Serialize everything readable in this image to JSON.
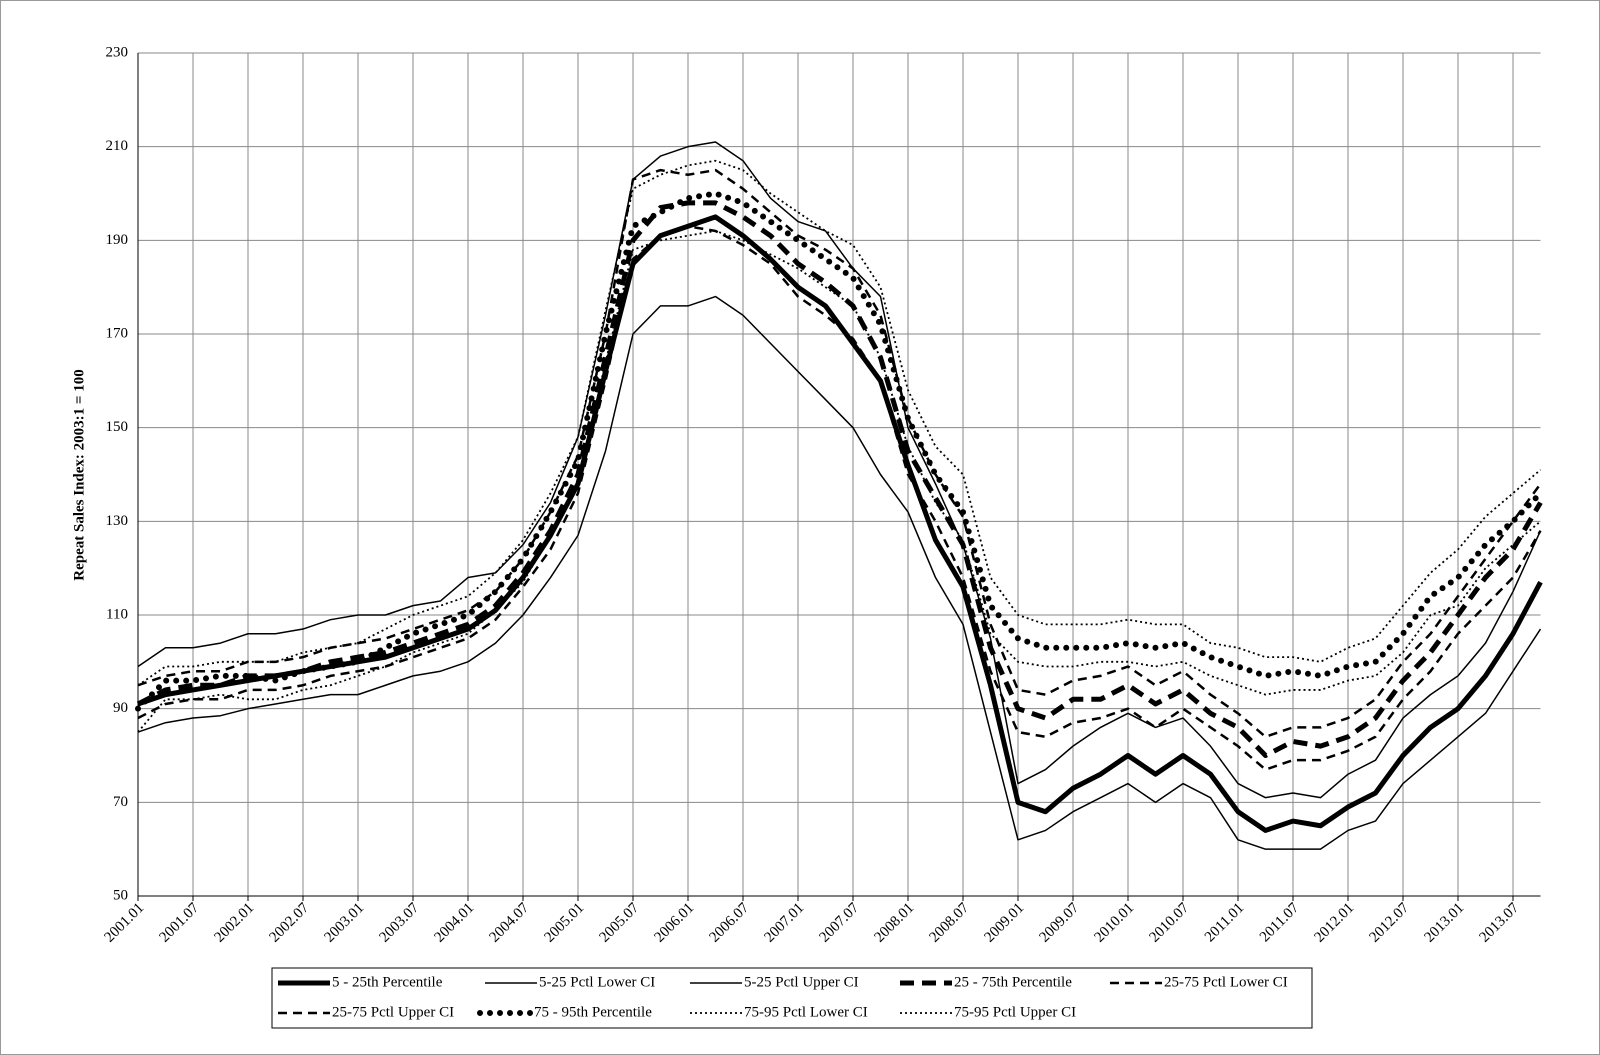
{
  "chart_data": {
    "type": "line",
    "y_label": "Repeat Sales Index:  2003:1 = 100",
    "categories": [
      "2001.01",
      null,
      "2001.07",
      null,
      "2002.01",
      null,
      "2002.07",
      null,
      "2003.01",
      null,
      "2003.07",
      null,
      "2004.01",
      null,
      "2004.07",
      null,
      "2005.01",
      null,
      "2005.07",
      null,
      "2006.01",
      null,
      "2006.07",
      null,
      "2007.01",
      null,
      "2007.07",
      null,
      "2008.01",
      null,
      "2008.07",
      null,
      "2009.01",
      null,
      "2009.07",
      null,
      "2010.01",
      null,
      "2010.07",
      null,
      "2011.01",
      null,
      "2011.07",
      null,
      "2012.01",
      null,
      "2012.07",
      null,
      "2013.01",
      null,
      "2013.07",
      null
    ],
    "ylim": [
      50,
      230
    ],
    "yticks": [
      50,
      70,
      90,
      110,
      130,
      150,
      170,
      190,
      210,
      230
    ],
    "grid": true,
    "legend": "bottom",
    "series": [
      {
        "name": "5 - 25th Percentile",
        "color": "#000000",
        "linestyle": "solid",
        "weight": "thick",
        "values": [
          91,
          93,
          94,
          95,
          96,
          97,
          98,
          99,
          100,
          101,
          103,
          105,
          107,
          111,
          118,
          127,
          138,
          162,
          185,
          191,
          193,
          195,
          191,
          186,
          180,
          176,
          168,
          160,
          142,
          126,
          116,
          95,
          70,
          68,
          73,
          76,
          80,
          76,
          80,
          76,
          68,
          64,
          66,
          65,
          69,
          72,
          80,
          86,
          90,
          97,
          106,
          117
        ]
      },
      {
        "name": "5-25 Pctl Lower CI",
        "color": "#000000",
        "linestyle": "solid",
        "weight": "thin",
        "values": [
          85,
          87,
          88,
          88.5,
          90,
          91,
          92,
          93,
          93,
          95,
          97,
          98,
          100,
          104,
          110,
          118,
          127,
          145,
          170,
          176,
          176,
          178,
          174,
          168,
          162,
          156,
          150,
          140,
          132,
          118,
          108,
          85,
          62,
          64,
          68,
          71,
          74,
          70,
          74,
          71,
          62,
          60,
          60,
          60,
          64,
          66,
          74,
          79,
          84,
          89,
          98,
          107
        ]
      },
      {
        "name": "5-25 Pctl Upper CI",
        "color": "#000000",
        "linestyle": "solid",
        "weight": "thin",
        "values": [
          99,
          103,
          103,
          104,
          106,
          106,
          107,
          109,
          110,
          110,
          112,
          113,
          118,
          119,
          125,
          134,
          148,
          174,
          203,
          208,
          210,
          211,
          207,
          199,
          194,
          192,
          184,
          178,
          150,
          138,
          125,
          105,
          74,
          77,
          82,
          86,
          89,
          86,
          88,
          82,
          74,
          71,
          72,
          71,
          76,
          79,
          88,
          93,
          97,
          104,
          115,
          128
        ]
      },
      {
        "name": "25 - 75th Percentile",
        "color": "#000000",
        "linestyle": "dashed",
        "weight": "thick",
        "values": [
          91,
          94,
          95,
          95,
          97,
          97,
          98,
          100,
          101,
          102,
          104,
          106,
          108,
          112,
          119,
          128,
          140,
          165,
          190,
          197,
          198,
          198,
          195,
          191,
          185,
          181,
          176,
          165,
          145,
          135,
          125,
          103,
          90,
          88,
          92,
          92,
          95,
          91,
          94,
          89,
          86,
          80,
          83,
          82,
          84,
          88,
          96,
          102,
          110,
          118,
          124,
          134
        ]
      },
      {
        "name": "25-75 Pctl Lower CI",
        "color": "#000000",
        "linestyle": "dashed",
        "weight": "thin",
        "values": [
          88,
          91,
          92,
          92,
          94,
          94,
          95,
          97,
          98,
          99,
          101,
          103,
          105,
          109,
          116,
          124,
          136,
          160,
          186,
          191,
          193,
          192,
          189,
          185,
          178,
          174,
          169,
          160,
          140,
          130,
          118,
          98,
          85,
          84,
          87,
          88,
          90,
          86,
          90,
          86,
          82,
          77,
          79,
          79,
          81,
          84,
          92,
          98,
          106,
          112,
          118,
          128
        ]
      },
      {
        "name": "25-75 Pctl Upper CI",
        "color": "#000000",
        "linestyle": "dashed",
        "weight": "thin",
        "values": [
          95,
          97,
          98,
          98,
          100,
          100,
          101,
          103,
          104,
          105,
          107,
          109,
          111,
          115,
          122,
          132,
          144,
          170,
          203,
          205,
          204,
          205,
          201,
          196,
          191,
          188,
          184,
          174,
          152,
          140,
          131,
          108,
          94,
          93,
          96,
          97,
          99,
          95,
          98,
          93,
          89,
          84,
          86,
          86,
          88,
          92,
          100,
          106,
          114,
          122,
          130,
          138
        ]
      },
      {
        "name": "75 - 95th Percentile",
        "color": "#000000",
        "linestyle": "dotted",
        "weight": "thick",
        "values": [
          90,
          96,
          96,
          97,
          97,
          96,
          98,
          99,
          100,
          103,
          106,
          108,
          110,
          115,
          122,
          132,
          143,
          170,
          193,
          196,
          199,
          200,
          198,
          194,
          190,
          186,
          182,
          172,
          152,
          140,
          132,
          112,
          105,
          103,
          103,
          103,
          104,
          103,
          104,
          101,
          99,
          97,
          98,
          97,
          99,
          100,
          106,
          114,
          118,
          125,
          130,
          136
        ]
      },
      {
        "name": "75-95 Pctl Lower CI",
        "color": "#000000",
        "linestyle": "dotted",
        "weight": "thin",
        "values": [
          85,
          92,
          92,
          93,
          92,
          92,
          94,
          95,
          97,
          99,
          102,
          104,
          106,
          111,
          117,
          127,
          138,
          164,
          188,
          190,
          191,
          192,
          190,
          187,
          184,
          180,
          176,
          165,
          146,
          134,
          126,
          106,
          100,
          99,
          99,
          100,
          100,
          99,
          100,
          97,
          95,
          93,
          94,
          94,
          96,
          97,
          102,
          110,
          112,
          120,
          125,
          130
        ]
      },
      {
        "name": "75-95 Pctl Upper CI",
        "color": "#000000",
        "linestyle": "dotted",
        "weight": "thin",
        "values": [
          95,
          99,
          99,
          100,
          100,
          100,
          102,
          103,
          104,
          107,
          110,
          112,
          114,
          119,
          126,
          136,
          148,
          175,
          201,
          204,
          206,
          207,
          205,
          200,
          196,
          192,
          189,
          180,
          158,
          146,
          140,
          118,
          110,
          108,
          108,
          108,
          109,
          108,
          108,
          104,
          103,
          101,
          101,
          100,
          103,
          105,
          112,
          119,
          124,
          131,
          136,
          141
        ]
      }
    ]
  }
}
